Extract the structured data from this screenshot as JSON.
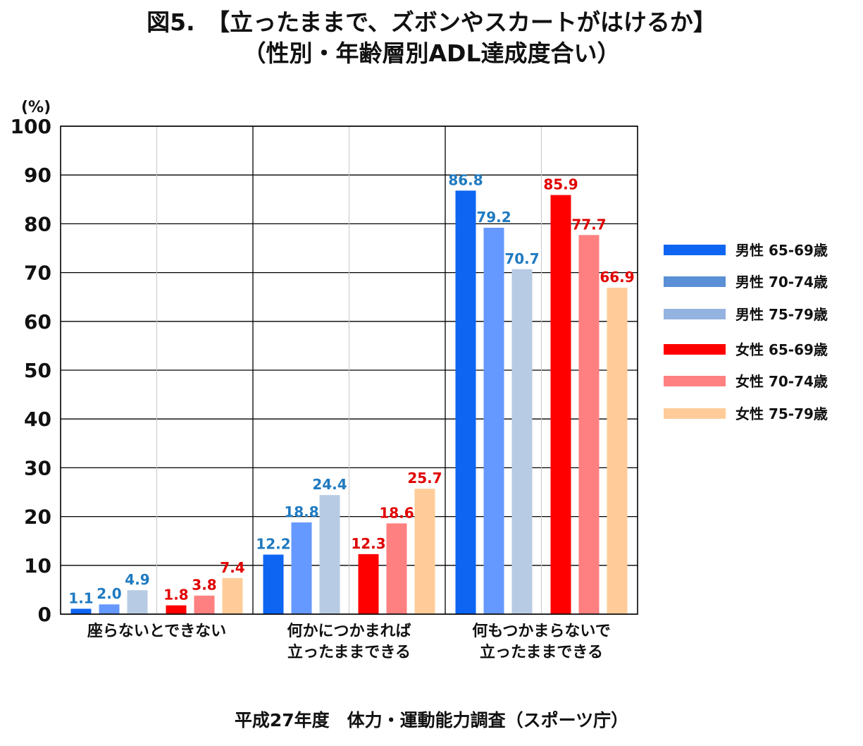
{
  "titles": {
    "line1": "図5.　【立ったままで、ズボンやスカートがはけるか】",
    "line2": "（性別・年齢層別ADL達成度合い）"
  },
  "source": "平成27年度　体力・運動能力調査（スポーツ庁）",
  "colors": {
    "male_label": "#1f7ac0",
    "female_label": "#e00000"
  },
  "chart_data": {
    "type": "bar",
    "ylabel": "(%)",
    "ylim": [
      0,
      100
    ],
    "yticks": [
      0,
      10,
      20,
      30,
      40,
      50,
      60,
      70,
      80,
      90,
      100
    ],
    "grid": true,
    "legend_position": "right",
    "categories": [
      [
        "座らないとできない"
      ],
      [
        "何かにつかまれば",
        "立ったままできる"
      ],
      [
        "何もつかまらないで",
        "立ったままできる"
      ]
    ],
    "series": [
      {
        "name": "男性 65-69歳",
        "color": "#0d65f2",
        "legend_color": "#0d65f2",
        "label_color": "#1f7ac0",
        "values": [
          1.1,
          12.2,
          86.8
        ]
      },
      {
        "name": "男性 70-74歳",
        "color": "#6699ff",
        "legend_color": "#5b8fd6",
        "label_color": "#1f7ac0",
        "values": [
          2.0,
          18.8,
          79.2
        ]
      },
      {
        "name": "男性 75-79歳",
        "color": "#b8cbe4",
        "legend_color": "#95b3e0",
        "label_color": "#1f7ac0",
        "values": [
          4.9,
          24.4,
          70.7
        ]
      },
      {
        "name": "女性 65-69歳",
        "color": "#ff0000",
        "legend_color": "#ff0000",
        "label_color": "#e00000",
        "values": [
          1.8,
          12.3,
          85.9
        ]
      },
      {
        "name": "女性 70-74歳",
        "color": "#ff8080",
        "legend_color": "#ff8080",
        "label_color": "#e00000",
        "values": [
          3.8,
          18.6,
          77.7
        ]
      },
      {
        "name": "女性 75-79歳",
        "color": "#ffcc99",
        "legend_color": "#ffcc99",
        "label_color": "#e00000",
        "values": [
          7.4,
          25.7,
          66.9
        ]
      }
    ]
  }
}
